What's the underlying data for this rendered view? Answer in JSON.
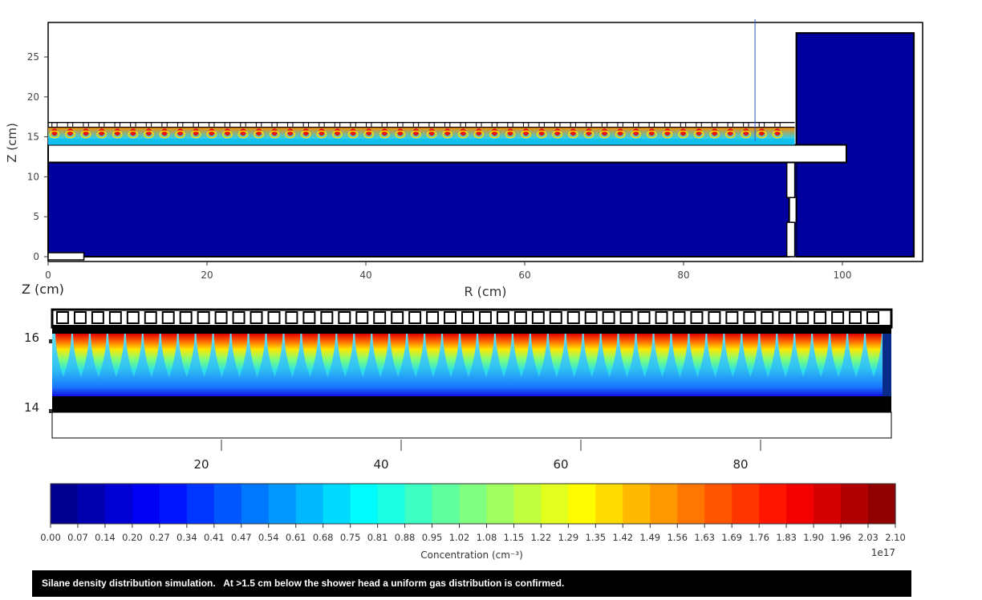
{
  "chart_data": [
    {
      "type": "heatmap",
      "xlabel": "R (cm)",
      "ylabel": "Z (cm)",
      "xlim": [
        0,
        110
      ],
      "ylim": [
        -1,
        29
      ],
      "xticks": [
        0,
        20,
        40,
        60,
        80,
        100
      ],
      "yticks": [
        0,
        5,
        10,
        15,
        20,
        25
      ],
      "grid": false,
      "background_level": 0.0,
      "cell_count": 47,
      "injection_band_z": [
        14.8,
        16.2
      ],
      "cursor_line_r": 89,
      "colormap": "jet"
    },
    {
      "type": "heatmap",
      "ylabel": "Z (cm)",
      "xticks": [
        20,
        40,
        60,
        80
      ],
      "yticks": [
        14,
        16
      ],
      "cell_count": 47
    },
    {
      "type": "colorbar",
      "label": "Concentration (cm⁻³)",
      "scale_note": "1e17",
      "ticks": [
        "0.00",
        "0.07",
        "0.14",
        "0.20",
        "0.27",
        "0.34",
        "0.41",
        "0.47",
        "0.54",
        "0.61",
        "0.68",
        "0.75",
        "0.81",
        "0.88",
        "0.95",
        "1.02",
        "1.08",
        "1.15",
        "1.22",
        "1.29",
        "1.35",
        "1.42",
        "1.49",
        "1.56",
        "1.63",
        "1.69",
        "1.76",
        "1.83",
        "1.90",
        "1.96",
        "2.03",
        "2.10"
      ],
      "range": [
        0.0,
        2.1
      ]
    }
  ],
  "caption": "Silane density distribution simulation.   At >1.5 cm below the shower head a uniform gas distribution is confirmed."
}
